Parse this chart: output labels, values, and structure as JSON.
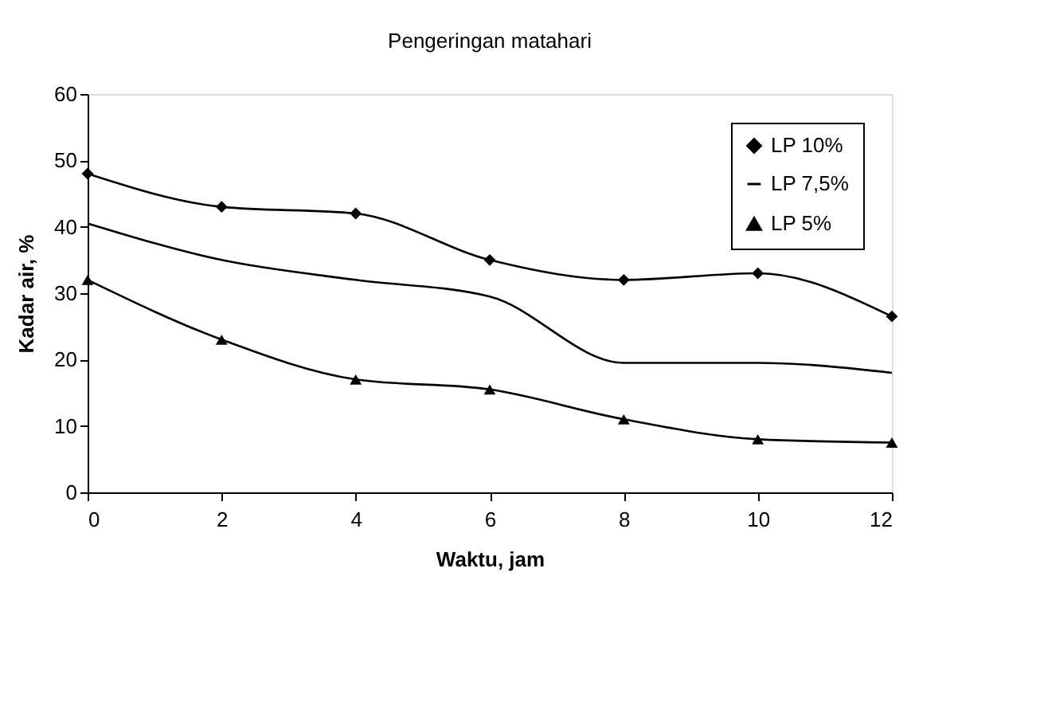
{
  "chart_data": {
    "type": "line",
    "title": "Pengeringan matahari",
    "xlabel": "Waktu, jam",
    "ylabel": "Kadar air, %",
    "x": [
      0,
      2,
      4,
      6,
      8,
      10,
      12
    ],
    "series": [
      {
        "name": "LP 10%",
        "color": "#000000",
        "marker": "diamond",
        "values": [
          48,
          43,
          42,
          35,
          32,
          33,
          26.5
        ]
      },
      {
        "name": "LP 7,5%",
        "color": "#000000",
        "marker": "none",
        "values": [
          40.5,
          35,
          32,
          29.5,
          19.5,
          19.5,
          18
        ]
      },
      {
        "name": "LP 5%",
        "color": "#000000",
        "marker": "triangle",
        "values": [
          32,
          23,
          17,
          15.5,
          11,
          8,
          7.5
        ]
      }
    ],
    "xlim": [
      0,
      12
    ],
    "xticks": [
      0,
      2,
      4,
      6,
      8,
      10,
      12
    ],
    "ylim": [
      0,
      60
    ],
    "yticks": [
      0,
      10,
      20,
      30,
      40,
      50,
      60
    ],
    "grid": false,
    "legend": "top right",
    "line_style": "solid"
  }
}
